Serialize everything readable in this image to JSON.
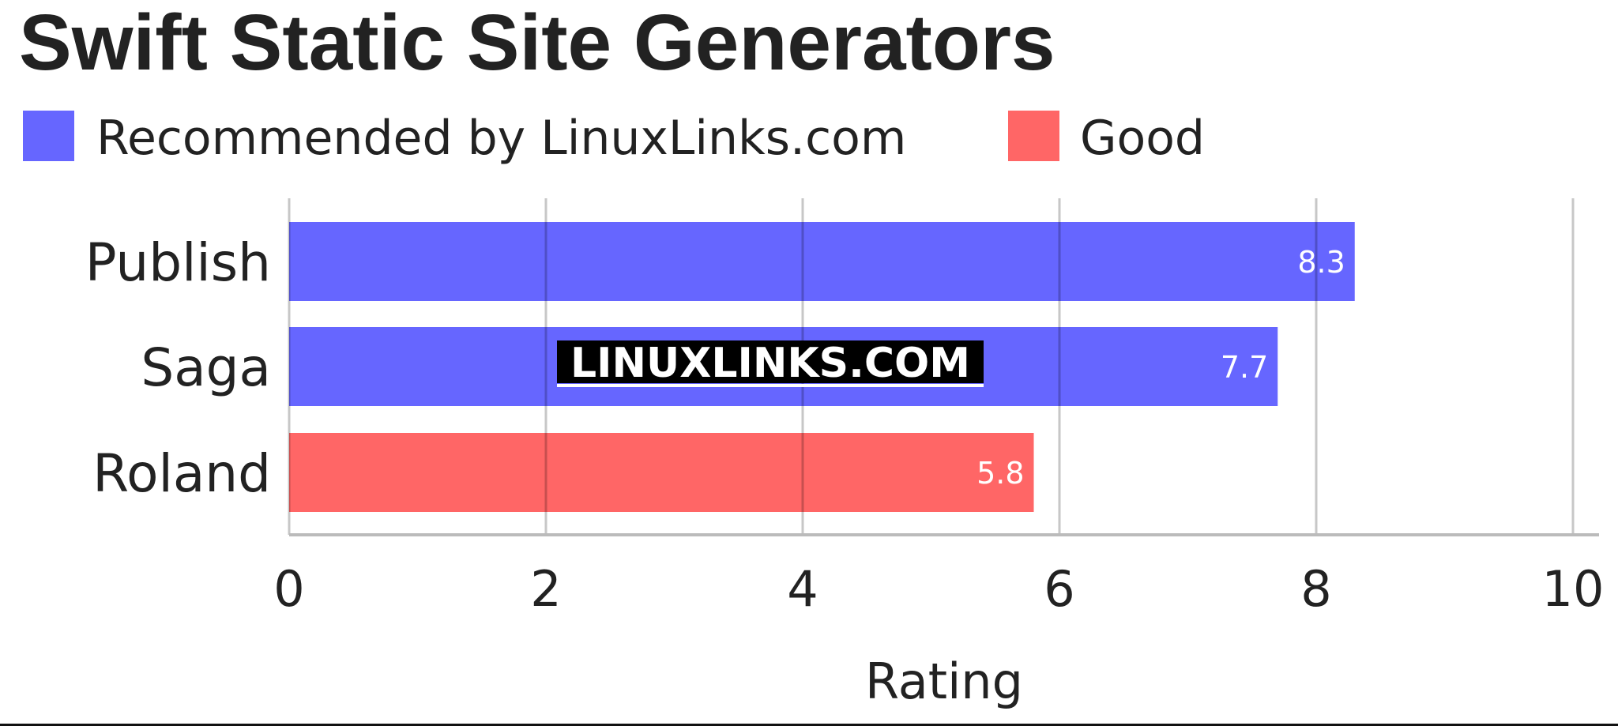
{
  "chart_data": {
    "type": "bar",
    "orientation": "horizontal",
    "title": "Swift Static Site Generators",
    "xlabel": "Rating",
    "ylabel": "",
    "xlim": [
      0,
      10
    ],
    "ticks": [
      "0",
      "2",
      "4",
      "6",
      "8",
      "10"
    ],
    "grid": true,
    "legend_placement": "top-left",
    "legend": [
      {
        "label": "Recommended by LinuxLinks.com",
        "color": "#6666ff"
      },
      {
        "label": "Good",
        "color": "#ff6666"
      }
    ],
    "categories": [
      "Publish",
      "Saga",
      "Roland"
    ],
    "values": [
      8.3,
      7.7,
      5.8
    ],
    "value_labels": [
      "8.3",
      "7.7",
      "5.8"
    ],
    "bar_series": [
      0,
      0,
      1
    ]
  },
  "watermark": "LINUXLINKS.COM"
}
